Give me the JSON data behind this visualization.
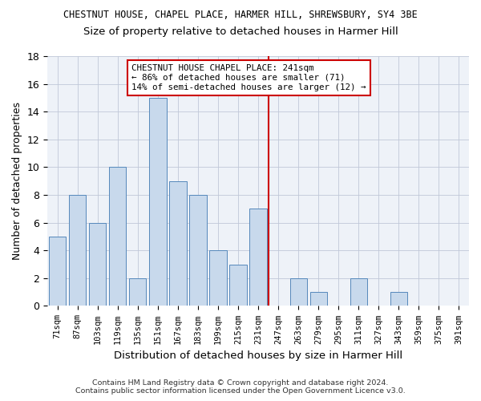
{
  "title1": "CHESTNUT HOUSE, CHAPEL PLACE, HARMER HILL, SHREWSBURY, SY4 3BE",
  "title2": "Size of property relative to detached houses in Harmer Hill",
  "xlabel": "Distribution of detached houses by size in Harmer Hill",
  "ylabel": "Number of detached properties",
  "bin_labels": [
    "71sqm",
    "87sqm",
    "103sqm",
    "119sqm",
    "135sqm",
    "151sqm",
    "167sqm",
    "183sqm",
    "199sqm",
    "215sqm",
    "231sqm",
    "247sqm",
    "263sqm",
    "279sqm",
    "295sqm",
    "311sqm",
    "327sqm",
    "343sqm",
    "359sqm",
    "375sqm",
    "391sqm"
  ],
  "values": [
    5,
    8,
    6,
    10,
    2,
    15,
    9,
    8,
    4,
    3,
    7,
    0,
    2,
    1,
    0,
    2,
    0,
    1,
    0,
    0,
    0
  ],
  "bar_color": "#c8d9ec",
  "bar_edge_color": "#5588bb",
  "marker_idx": 11,
  "marker_label": "CHESTNUT HOUSE CHAPEL PLACE: 241sqm",
  "annotation_line1": "← 86% of detached houses are smaller (71)",
  "annotation_line2": "14% of semi-detached houses are larger (12) →",
  "vline_color": "#cc0000",
  "annotation_box_edge": "#cc0000",
  "ylim": [
    0,
    18
  ],
  "yticks": [
    0,
    2,
    4,
    6,
    8,
    10,
    12,
    14,
    16,
    18
  ],
  "footer1": "Contains HM Land Registry data © Crown copyright and database right 2024.",
  "footer2": "Contains public sector information licensed under the Open Government Licence v3.0.",
  "bg_color": "#eef2f8",
  "grid_color": "#c0c8d8"
}
